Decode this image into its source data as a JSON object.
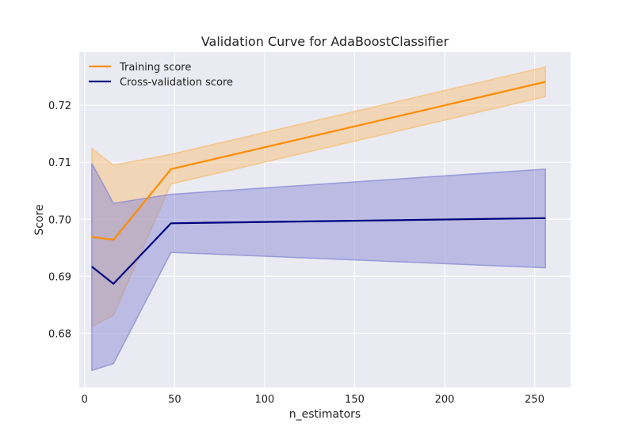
{
  "chart_data": {
    "type": "line",
    "title": "Validation Curve for AdaBoostClassifier",
    "xlabel": "n_estimators",
    "ylabel": "Score",
    "xlim": [
      -3,
      270
    ],
    "ylim": [
      0.6705,
      0.7293
    ],
    "xticks": [
      0,
      50,
      100,
      150,
      200,
      250
    ],
    "yticks": [
      0.68,
      0.69,
      0.7,
      0.71,
      0.72
    ],
    "ytick_labels": [
      "0.68",
      "0.69",
      "0.70",
      "0.71",
      "0.72"
    ],
    "grid": true,
    "legend_position": "top-left",
    "x": [
      4,
      16,
      48,
      256
    ],
    "series": [
      {
        "name": "Training score",
        "color": "#ff8c00",
        "band_color": "#f5c07a",
        "values": [
          0.6969,
          0.6964,
          0.7088,
          0.7241
        ],
        "lower": [
          0.6812,
          0.6832,
          0.7062,
          0.7215
        ],
        "upper": [
          0.7124,
          0.7095,
          0.7114,
          0.7267
        ]
      },
      {
        "name": "Cross-validation score",
        "color": "#000080",
        "band_color": "#8c8cd4",
        "values": [
          0.6917,
          0.6887,
          0.6993,
          0.7002
        ],
        "lower": [
          0.6735,
          0.6747,
          0.6942,
          0.6915
        ],
        "upper": [
          0.7098,
          0.7028,
          0.7044,
          0.7088
        ]
      }
    ]
  }
}
